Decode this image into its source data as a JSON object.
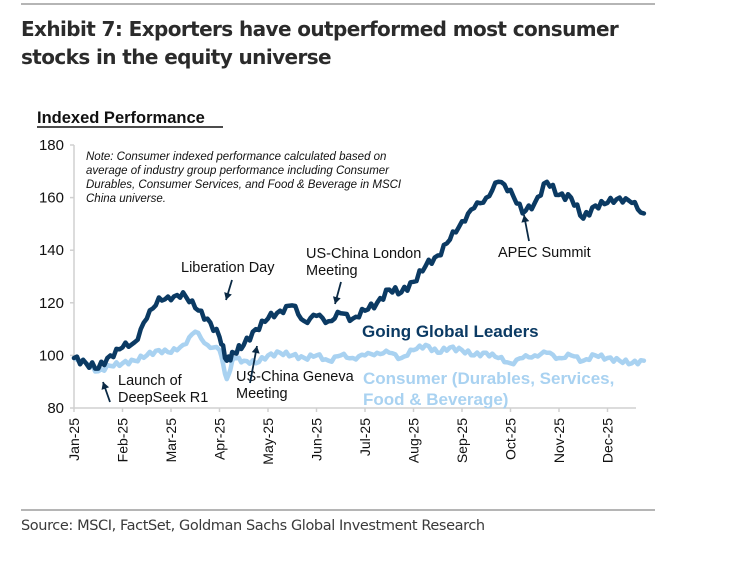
{
  "header": {
    "title_line1": "Exhibit 7: Exporters have outperformed most consumer",
    "title_line2": "stocks in the equity universe"
  },
  "footer": {
    "source": "Source: MSCI, FactSet, Goldman Sachs Global Investment Research"
  },
  "colors": {
    "going_global": "#0b3a63",
    "consumer": "#a9d2f1",
    "axis": "#d0d0d0"
  },
  "chart_data": {
    "type": "line",
    "title": "Indexed Performance",
    "ylabel": "Indexed Performance",
    "xlabel": "",
    "ylim": [
      80,
      180
    ],
    "yticks": [
      80,
      100,
      120,
      140,
      160,
      180
    ],
    "xticks": [
      "Jan-25",
      "Feb-25",
      "Mar-25",
      "Apr-25",
      "May-25",
      "Jun-25",
      "Jul-25",
      "Aug-25",
      "Sep-25",
      "Oct-25",
      "Nov-25",
      "Dec-25"
    ],
    "grid": false,
    "note_lines": [
      "Note: Consumer indexed performance calculated based  on",
      "average of industry group performance including Consumer",
      "Durables, Consumer Services, and Food & Beverage in MSCI",
      "China universe."
    ],
    "x": [
      0,
      0.25,
      0.5,
      0.75,
      1,
      1.25,
      1.5,
      1.75,
      2,
      2.25,
      2.5,
      2.75,
      3,
      3.15,
      3.3,
      3.5,
      3.75,
      4,
      4.25,
      4.5,
      4.75,
      5,
      5.25,
      5.5,
      5.75,
      6,
      6.25,
      6.5,
      6.75,
      7,
      7.25,
      7.5,
      7.75,
      8,
      8.25,
      8.5,
      8.75,
      9,
      9.25,
      9.5,
      9.75,
      10,
      10.25,
      10.5,
      10.75,
      11,
      11.25,
      11.5,
      11.75
    ],
    "series": [
      {
        "name": "Going Global Leaders",
        "values": [
          99,
          97,
          95,
          100,
          103,
          105,
          114,
          122,
          121,
          124,
          118,
          114,
          107,
          98,
          101,
          104,
          110,
          114,
          117,
          119,
          113,
          115,
          113,
          116,
          114,
          117,
          120,
          125,
          124,
          128,
          134,
          138,
          144,
          151,
          156,
          160,
          166,
          163,
          154,
          158,
          166,
          161,
          160,
          152,
          157,
          158,
          160,
          158,
          154
        ]
      },
      {
        "name": "Consumer (Durables, Services, Food & Beverage)",
        "values": [
          99,
          97,
          94,
          96,
          97,
          98,
          100,
          102,
          101,
          104,
          109,
          104,
          102,
          91,
          99,
          98,
          97,
          100,
          101,
          100,
          99,
          100,
          98,
          100,
          99,
          100,
          101,
          101,
          99,
          102,
          104,
          101,
          103,
          102,
          100,
          101,
          99,
          97,
          99,
          100,
          101,
          99,
          100,
          98,
          100,
          99,
          98,
          97,
          98
        ]
      }
    ],
    "annotations": [
      {
        "text_lines": [
          "Liberation Day"
        ],
        "x": 3.0,
        "y": 119
      },
      {
        "text_lines": [
          "Launch of",
          "DeepSeek R1"
        ],
        "x": 0.85,
        "y": 96
      },
      {
        "text_lines": [
          "US-China Geneva",
          "Meeting"
        ],
        "x": 4.3,
        "y": 108
      },
      {
        "text_lines": [
          "US-China London",
          "Meeting"
        ],
        "x": 5.4,
        "y": 116
      },
      {
        "text_lines": [
          "APEC Summit"
        ],
        "x": 9.6,
        "y": 153
      }
    ],
    "legend": [
      {
        "label": "Going Global Leaders",
        "placement": "inline"
      },
      {
        "label_lines": [
          "Consumer (Durables, Services,",
          "Food & Beverage)"
        ],
        "placement": "inline"
      }
    ]
  }
}
